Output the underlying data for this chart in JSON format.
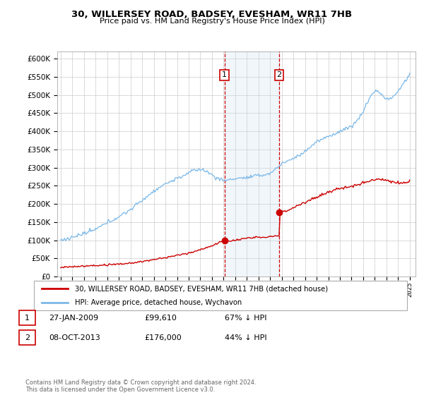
{
  "title": "30, WILLERSEY ROAD, BADSEY, EVESHAM, WR11 7HB",
  "subtitle": "Price paid vs. HM Land Registry's House Price Index (HPI)",
  "legend_line1": "30, WILLERSEY ROAD, BADSEY, EVESHAM, WR11 7HB (detached house)",
  "legend_line2": "HPI: Average price, detached house, Wychavon",
  "transaction1_label": "1",
  "transaction1_date": "27-JAN-2009",
  "transaction1_price": "£99,610",
  "transaction1_pct": "67% ↓ HPI",
  "transaction2_label": "2",
  "transaction2_date": "08-OCT-2013",
  "transaction2_price": "£176,000",
  "transaction2_pct": "44% ↓ HPI",
  "footer": "Contains HM Land Registry data © Crown copyright and database right 2024.\nThis data is licensed under the Open Government Licence v3.0.",
  "hpi_color": "#7ab8e8",
  "price_color": "#cc0000",
  "highlight_color": "#ddeeff",
  "annotation_color": "#cc0000",
  "ylim_min": 0,
  "ylim_max": 620000,
  "yticks": [
    0,
    50000,
    100000,
    150000,
    200000,
    250000,
    300000,
    350000,
    400000,
    450000,
    500000,
    550000,
    600000
  ],
  "transaction1_x": 2009.08,
  "transaction1_y": 99610,
  "transaction2_x": 2013.77,
  "transaction2_y": 176000,
  "xmin": 1994.7,
  "xmax": 2025.5
}
